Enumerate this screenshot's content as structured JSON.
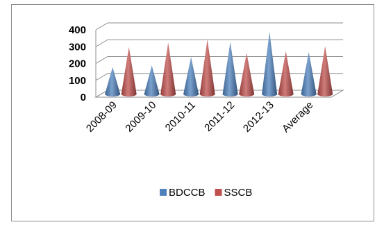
{
  "chart_data": {
    "type": "bar",
    "title": "",
    "xlabel": "",
    "ylabel": "",
    "categories": [
      "2008-09",
      "2009-10",
      "2010-11",
      "2011-12",
      "2012-13",
      "Average"
    ],
    "series": [
      {
        "name": "BDCCB",
        "values": [
          160,
          170,
          220,
          310,
          370,
          250
        ],
        "color": "#4f81bd"
      },
      {
        "name": "SSCB",
        "values": [
          280,
          305,
          325,
          245,
          255,
          285
        ],
        "color": "#c0504d"
      }
    ],
    "ylim": [
      0,
      400
    ],
    "yticks": [
      "0",
      "100",
      "200",
      "300",
      "400"
    ],
    "grid": true,
    "legend_position": "bottom",
    "shape": "cone"
  }
}
